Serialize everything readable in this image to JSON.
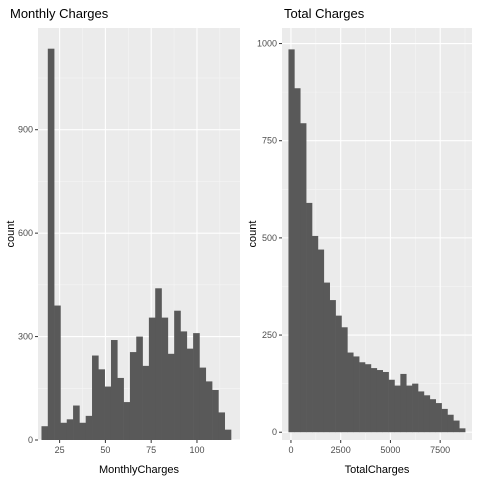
{
  "chart_data": [
    {
      "type": "bar",
      "title": "Monthly Charges",
      "xlabel": "MonthlyCharges",
      "ylabel": "count",
      "grid": true,
      "xlim": [
        13.2,
        123.5
      ],
      "ylim": [
        0,
        1195
      ],
      "xticks": [
        25,
        50,
        75,
        100
      ],
      "yticks": [
        0,
        300,
        600,
        900
      ],
      "bins": {
        "start": 15.1,
        "width": 3.45
      },
      "values": [
        40,
        1135,
        390,
        50,
        60,
        100,
        50,
        70,
        245,
        205,
        155,
        290,
        180,
        110,
        255,
        300,
        215,
        355,
        440,
        355,
        250,
        375,
        315,
        265,
        310,
        210,
        170,
        145,
        80,
        30
      ]
    },
    {
      "type": "bar",
      "title": "Total Charges",
      "xlabel": "TotalCharges",
      "ylabel": "count",
      "grid": true,
      "xlim": [
        -450,
        9100
      ],
      "ylim": [
        -20,
        1040
      ],
      "xticks": [
        0,
        2500,
        5000,
        7500
      ],
      "yticks": [
        0,
        250,
        500,
        750,
        1000
      ],
      "bins": {
        "start": -125,
        "width": 296
      },
      "values": [
        985,
        885,
        795,
        590,
        505,
        470,
        385,
        340,
        300,
        270,
        205,
        195,
        180,
        175,
        165,
        160,
        155,
        135,
        120,
        150,
        120,
        125,
        105,
        95,
        85,
        75,
        60,
        45,
        30,
        10
      ]
    }
  ]
}
